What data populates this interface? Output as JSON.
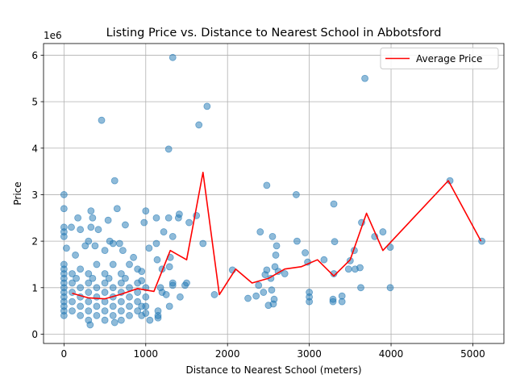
{
  "chart_data": {
    "type": "scatter",
    "title": "Listing Price vs. Distance to Nearest School in Abbotsford",
    "xlabel": "Distance to Nearest School (meters)",
    "ylabel": "Price",
    "y_offset_text": "1e6",
    "xlim": [
      -250,
      5380
    ],
    "ylim": [
      -200000,
      6250000
    ],
    "x_ticks": [
      0,
      1000,
      2000,
      3000,
      4000,
      5000
    ],
    "x_tick_labels": [
      "0",
      "1000",
      "2000",
      "3000",
      "4000",
      "5000"
    ],
    "y_ticks": [
      0,
      1000000,
      2000000,
      3000000,
      4000000,
      5000000,
      6000000
    ],
    "y_tick_labels": [
      "0",
      "1",
      "2",
      "3",
      "4",
      "5",
      "6"
    ],
    "grid": true,
    "legend_position": "top-right",
    "scatter_color": "#1f77b4",
    "line_color": "#ff0000",
    "series": [
      {
        "name": "Average Price",
        "type": "line",
        "points": [
          [
            100,
            880000
          ],
          [
            300,
            780000
          ],
          [
            500,
            760000
          ],
          [
            700,
            860000
          ],
          [
            900,
            980000
          ],
          [
            1100,
            920000
          ],
          [
            1300,
            1800000
          ],
          [
            1500,
            1600000
          ],
          [
            1700,
            3480000
          ],
          [
            1900,
            850000
          ],
          [
            2100,
            1400000
          ],
          [
            2300,
            1100000
          ],
          [
            2500,
            1200000
          ],
          [
            2700,
            1400000
          ],
          [
            2900,
            1450000
          ],
          [
            3100,
            1600000
          ],
          [
            3300,
            1250000
          ],
          [
            3500,
            1600000
          ],
          [
            3700,
            2600000
          ],
          [
            3900,
            1800000
          ],
          [
            4700,
            3300000
          ],
          [
            5100,
            2000000
          ]
        ]
      },
      {
        "name": "",
        "type": "scatter",
        "points": [
          [
            0,
            3000000
          ],
          [
            0,
            2700000
          ],
          [
            0,
            2300000
          ],
          [
            0,
            2200000
          ],
          [
            0,
            2100000
          ],
          [
            0,
            1500000
          ],
          [
            0,
            1400000
          ],
          [
            0,
            1300000
          ],
          [
            0,
            1200000
          ],
          [
            0,
            1100000
          ],
          [
            0,
            1000000
          ],
          [
            0,
            900000
          ],
          [
            0,
            800000
          ],
          [
            0,
            700000
          ],
          [
            0,
            600000
          ],
          [
            0,
            500000
          ],
          [
            0,
            400000
          ],
          [
            460,
            4600000
          ],
          [
            620,
            3300000
          ],
          [
            1330,
            5950000
          ],
          [
            1280,
            3980000
          ],
          [
            1650,
            4500000
          ],
          [
            1750,
            4900000
          ],
          [
            3680,
            5500000
          ],
          [
            4720,
            3300000
          ],
          [
            5110,
            2000000
          ],
          [
            330,
            2650000
          ],
          [
            650,
            2700000
          ],
          [
            1000,
            2650000
          ],
          [
            1620,
            2550000
          ],
          [
            2480,
            3200000
          ],
          [
            2840,
            3000000
          ],
          [
            3300,
            2800000
          ],
          [
            3640,
            2400000
          ],
          [
            3800,
            2100000
          ],
          [
            3900,
            2200000
          ],
          [
            3990,
            1870000
          ],
          [
            3990,
            1000000
          ],
          [
            2060,
            1380000
          ],
          [
            2250,
            770000
          ],
          [
            2350,
            820000
          ],
          [
            2380,
            1050000
          ],
          [
            2400,
            2200000
          ],
          [
            2440,
            900000
          ],
          [
            2460,
            1280000
          ],
          [
            2480,
            1380000
          ],
          [
            2500,
            620000
          ],
          [
            2530,
            1200000
          ],
          [
            2540,
            950000
          ],
          [
            2550,
            2100000
          ],
          [
            2560,
            650000
          ],
          [
            2570,
            750000
          ],
          [
            2580,
            1450000
          ],
          [
            2590,
            1700000
          ],
          [
            2600,
            1900000
          ],
          [
            2620,
            1350000
          ],
          [
            2700,
            1300000
          ],
          [
            2850,
            2000000
          ],
          [
            2950,
            1750000
          ],
          [
            2980,
            1550000
          ],
          [
            3000,
            900000
          ],
          [
            3000,
            700000
          ],
          [
            3000,
            800000
          ],
          [
            3180,
            1600000
          ],
          [
            3290,
            700000
          ],
          [
            3290,
            750000
          ],
          [
            3300,
            1300000
          ],
          [
            3310,
            1990000
          ],
          [
            3400,
            820000
          ],
          [
            3400,
            700000
          ],
          [
            3480,
            1400000
          ],
          [
            3500,
            1580000
          ],
          [
            3550,
            1800000
          ],
          [
            3560,
            1400000
          ],
          [
            3620,
            1430000
          ],
          [
            3630,
            1000000
          ],
          [
            1040,
            1850000
          ],
          [
            1130,
            2500000
          ],
          [
            1220,
            2200000
          ],
          [
            1280,
            2500000
          ],
          [
            1330,
            2100000
          ],
          [
            1400,
            2500000
          ],
          [
            1410,
            2580000
          ],
          [
            1530,
            2400000
          ],
          [
            1700,
            1950000
          ],
          [
            1840,
            850000
          ],
          [
            1330,
            1050000
          ],
          [
            1330,
            1100000
          ],
          [
            1480,
            1050000
          ],
          [
            1500,
            1100000
          ],
          [
            1420,
            800000
          ],
          [
            1290,
            600000
          ],
          [
            1290,
            1450000
          ],
          [
            1300,
            1650000
          ],
          [
            1150,
            350000
          ],
          [
            1150,
            500000
          ],
          [
            1150,
            400000
          ],
          [
            1050,
            300000
          ],
          [
            1000,
            450000
          ],
          [
            1000,
            600000
          ],
          [
            1130,
            1950000
          ],
          [
            1140,
            1600000
          ],
          [
            1200,
            1400000
          ],
          [
            1180,
            1000000
          ],
          [
            1200,
            900000
          ],
          [
            1250,
            850000
          ],
          [
            140,
            1700000
          ],
          [
            170,
            2500000
          ],
          [
            200,
            2250000
          ],
          [
            260,
            1900000
          ],
          [
            300,
            2000000
          ],
          [
            330,
            2300000
          ],
          [
            350,
            2500000
          ],
          [
            380,
            1900000
          ],
          [
            420,
            2250000
          ],
          [
            500,
            1800000
          ],
          [
            540,
            2450000
          ],
          [
            560,
            2000000
          ],
          [
            600,
            1950000
          ],
          [
            680,
            1950000
          ],
          [
            720,
            1800000
          ],
          [
            750,
            2350000
          ],
          [
            850,
            1650000
          ],
          [
            980,
            2400000
          ],
          [
            30,
            1850000
          ],
          [
            90,
            2300000
          ],
          [
            200,
            1400000
          ],
          [
            400,
            1500000
          ],
          [
            600,
            1500000
          ],
          [
            800,
            1500000
          ],
          [
            900,
            1400000
          ],
          [
            100,
            1300000
          ],
          [
            300,
            1300000
          ],
          [
            500,
            1300000
          ],
          [
            700,
            1300000
          ],
          [
            950,
            1350000
          ],
          [
            150,
            1200000
          ],
          [
            350,
            1200000
          ],
          [
            550,
            1200000
          ],
          [
            750,
            1200000
          ],
          [
            950,
            1150000
          ],
          [
            100,
            1100000
          ],
          [
            300,
            1100000
          ],
          [
            500,
            1100000
          ],
          [
            700,
            1100000
          ],
          [
            900,
            1100000
          ],
          [
            200,
            1000000
          ],
          [
            400,
            1000000
          ],
          [
            600,
            1000000
          ],
          [
            800,
            1000000
          ],
          [
            1000,
            1000000
          ],
          [
            100,
            900000
          ],
          [
            300,
            900000
          ],
          [
            500,
            900000
          ],
          [
            700,
            900000
          ],
          [
            900,
            900000
          ],
          [
            200,
            800000
          ],
          [
            400,
            800000
          ],
          [
            600,
            800000
          ],
          [
            800,
            800000
          ],
          [
            1000,
            800000
          ],
          [
            100,
            700000
          ],
          [
            300,
            700000
          ],
          [
            500,
            700000
          ],
          [
            700,
            700000
          ],
          [
            900,
            700000
          ],
          [
            200,
            600000
          ],
          [
            400,
            600000
          ],
          [
            600,
            600000
          ],
          [
            800,
            600000
          ],
          [
            950,
            600000
          ],
          [
            100,
            500000
          ],
          [
            300,
            500000
          ],
          [
            500,
            500000
          ],
          [
            700,
            500000
          ],
          [
            900,
            500000
          ],
          [
            200,
            400000
          ],
          [
            400,
            400000
          ],
          [
            600,
            400000
          ],
          [
            800,
            400000
          ],
          [
            950,
            400000
          ],
          [
            300,
            300000
          ],
          [
            500,
            300000
          ],
          [
            700,
            300000
          ],
          [
            320,
            200000
          ],
          [
            620,
            250000
          ]
        ]
      }
    ]
  }
}
